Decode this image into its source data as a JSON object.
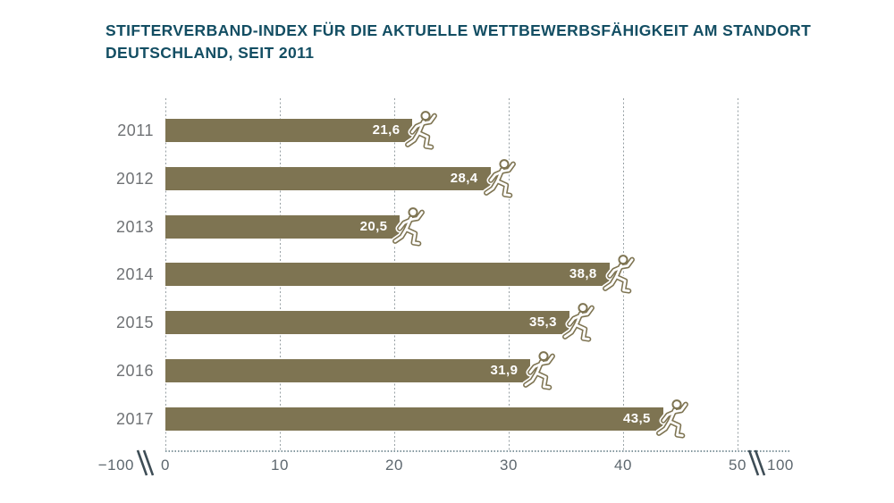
{
  "title": {
    "line1": "STIFTERVERBAND-INDEX FÜR DIE AKTUELLE WETTBEWERBSFÄHIGKEIT AM STANDORT",
    "line2": "DEUTSCHLAND, SEIT 2011"
  },
  "chart_data": {
    "type": "bar",
    "orientation": "horizontal",
    "title": "STIFTERVERBAND-INDEX FÜR DIE AKTUELLE WETTBEWERBSFÄHIGKEIT AM STANDORT DEUTSCHLAND, SEIT 2011",
    "categories": [
      "2011",
      "2012",
      "2013",
      "2014",
      "2015",
      "2016",
      "2017"
    ],
    "values": [
      21.6,
      28.4,
      20.5,
      38.8,
      35.3,
      31.9,
      43.5
    ],
    "value_labels": [
      "21,6",
      "28,4",
      "20,5",
      "38,8",
      "35,3",
      "31,9",
      "43,5"
    ],
    "xlabel": "",
    "ylabel": "",
    "axis": {
      "visible_range": [
        0,
        50
      ],
      "tick_labels": [
        "0",
        "10",
        "20",
        "30",
        "40",
        "50"
      ],
      "tick_values": [
        0,
        10,
        20,
        30,
        40,
        50
      ],
      "break_left_label": "−100",
      "break_right_label": "100",
      "has_axis_breaks": true
    },
    "grid": "dotted vertical gridlines at each tick",
    "legend": "none",
    "bar_end_icon": "runner-icon"
  },
  "colors": {
    "bar": "#7e7452",
    "title_text": "#134e63",
    "year_text": "#6f7275",
    "axis_text": "#5e686f",
    "break_mark": "#3e4d56",
    "value_text": "#ffffff",
    "background": "#ffffff"
  }
}
